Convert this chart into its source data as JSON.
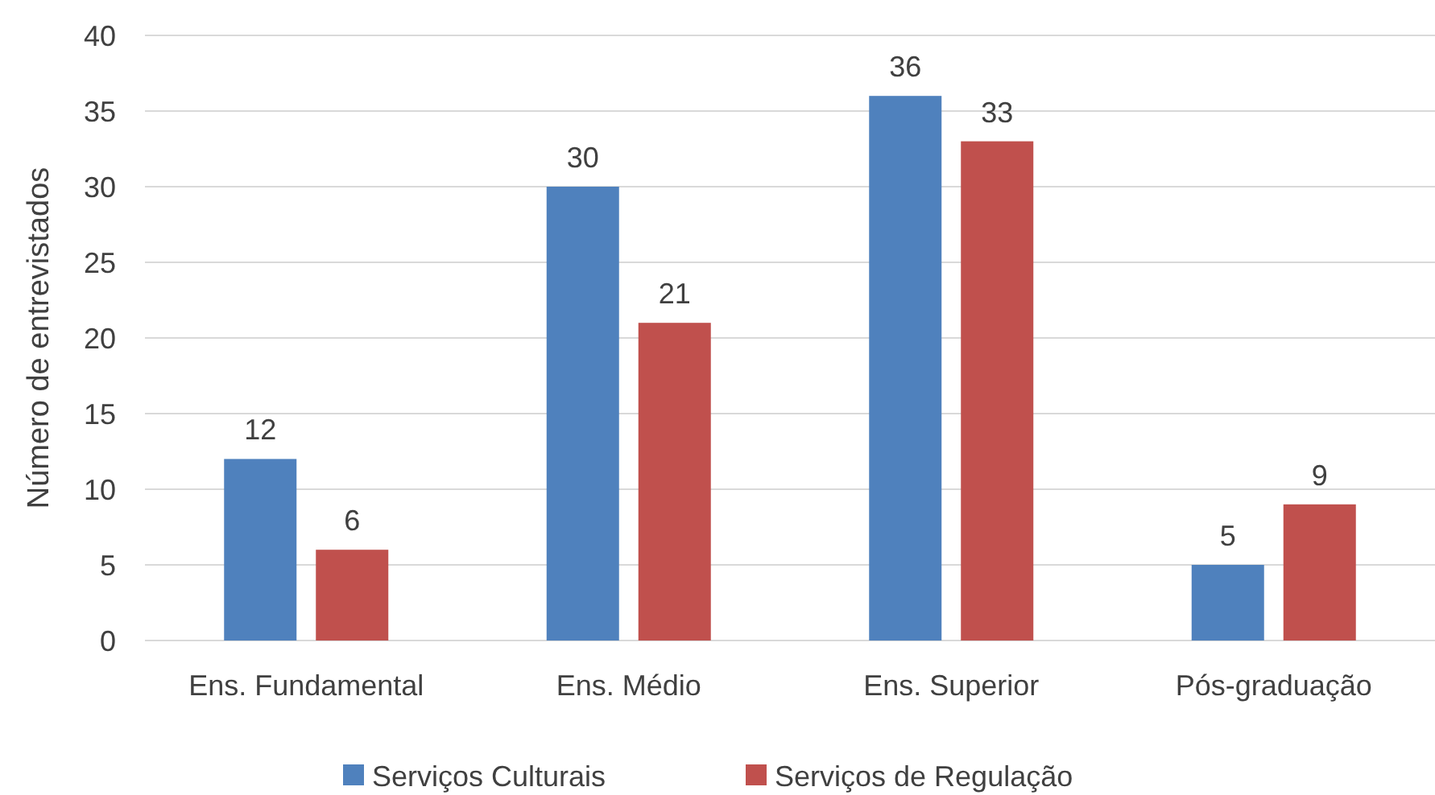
{
  "chart_data": {
    "type": "bar",
    "ylabel": "Número de entrevistados",
    "categories": [
      "Ens. Fundamental",
      "Ens. Médio",
      "Ens. Superior",
      "Pós-graduação"
    ],
    "series": [
      {
        "name": "Serviços Culturais",
        "color": "#4f81bd",
        "values": [
          12,
          30,
          36,
          5
        ]
      },
      {
        "name": "Serviços de Regulação",
        "color": "#c0504d",
        "values": [
          6,
          21,
          33,
          9
        ]
      }
    ],
    "ylim": [
      0,
      40
    ],
    "yticks": [
      0,
      5,
      10,
      15,
      20,
      25,
      30,
      35,
      40
    ],
    "grid": "y",
    "legend": "bottom",
    "data_labels": true
  }
}
